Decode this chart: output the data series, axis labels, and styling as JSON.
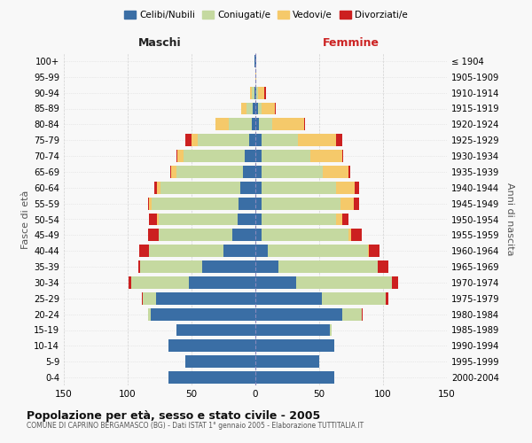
{
  "age_groups": [
    "0-4",
    "5-9",
    "10-14",
    "15-19",
    "20-24",
    "25-29",
    "30-34",
    "35-39",
    "40-44",
    "45-49",
    "50-54",
    "55-59",
    "60-64",
    "65-69",
    "70-74",
    "75-79",
    "80-84",
    "85-89",
    "90-94",
    "95-99",
    "100+"
  ],
  "birth_years": [
    "2000-2004",
    "1995-1999",
    "1990-1994",
    "1985-1989",
    "1980-1984",
    "1975-1979",
    "1970-1974",
    "1965-1969",
    "1960-1964",
    "1955-1959",
    "1950-1954",
    "1945-1949",
    "1940-1944",
    "1935-1939",
    "1930-1934",
    "1925-1929",
    "1920-1924",
    "1915-1919",
    "1910-1914",
    "1905-1909",
    "≤ 1904"
  ],
  "maschi": {
    "celibi": [
      68,
      55,
      68,
      62,
      82,
      78,
      52,
      42,
      25,
      18,
      14,
      13,
      12,
      10,
      8,
      5,
      3,
      2,
      1,
      0,
      1
    ],
    "coniugati": [
      0,
      0,
      0,
      0,
      2,
      10,
      45,
      48,
      58,
      58,
      62,
      68,
      62,
      52,
      48,
      40,
      18,
      5,
      2,
      0,
      0
    ],
    "vedovi": [
      0,
      0,
      0,
      0,
      0,
      0,
      0,
      0,
      0,
      0,
      1,
      2,
      3,
      4,
      5,
      5,
      10,
      4,
      1,
      0,
      0
    ],
    "divorziati": [
      0,
      0,
      0,
      0,
      0,
      1,
      2,
      2,
      8,
      8,
      6,
      1,
      2,
      1,
      1,
      5,
      0,
      0,
      0,
      0,
      0
    ]
  },
  "femmine": {
    "nubili": [
      62,
      50,
      62,
      58,
      68,
      52,
      32,
      18,
      10,
      5,
      5,
      5,
      5,
      5,
      5,
      5,
      3,
      2,
      1,
      0,
      1
    ],
    "coniugate": [
      0,
      0,
      0,
      2,
      15,
      50,
      75,
      78,
      78,
      68,
      58,
      62,
      58,
      48,
      38,
      28,
      10,
      3,
      1,
      0,
      0
    ],
    "vedove": [
      0,
      0,
      0,
      0,
      0,
      0,
      0,
      0,
      1,
      2,
      5,
      10,
      15,
      20,
      25,
      30,
      25,
      10,
      5,
      1,
      0
    ],
    "divorziate": [
      0,
      0,
      0,
      0,
      1,
      2,
      5,
      8,
      8,
      8,
      5,
      4,
      3,
      1,
      1,
      5,
      1,
      1,
      1,
      0,
      0
    ]
  },
  "colors": {
    "celibi": "#3a6ea5",
    "coniugati": "#c5d9a0",
    "vedovi": "#f5c96a",
    "divorziati": "#cc2020"
  },
  "xlim": 150,
  "title": "Popolazione per età, sesso e stato civile - 2005",
  "subtitle": "COMUNE DI CAPRINO BERGAMASCO (BG) - Dati ISTAT 1° gennaio 2005 - Elaborazione TUTTITALIA.IT",
  "ylabel_left": "Fasce di età",
  "ylabel_right": "Anni di nascita",
  "xlabel_left": "Maschi",
  "xlabel_right": "Femmine",
  "background_color": "#f8f8f8",
  "grid_color": "#cccccc"
}
